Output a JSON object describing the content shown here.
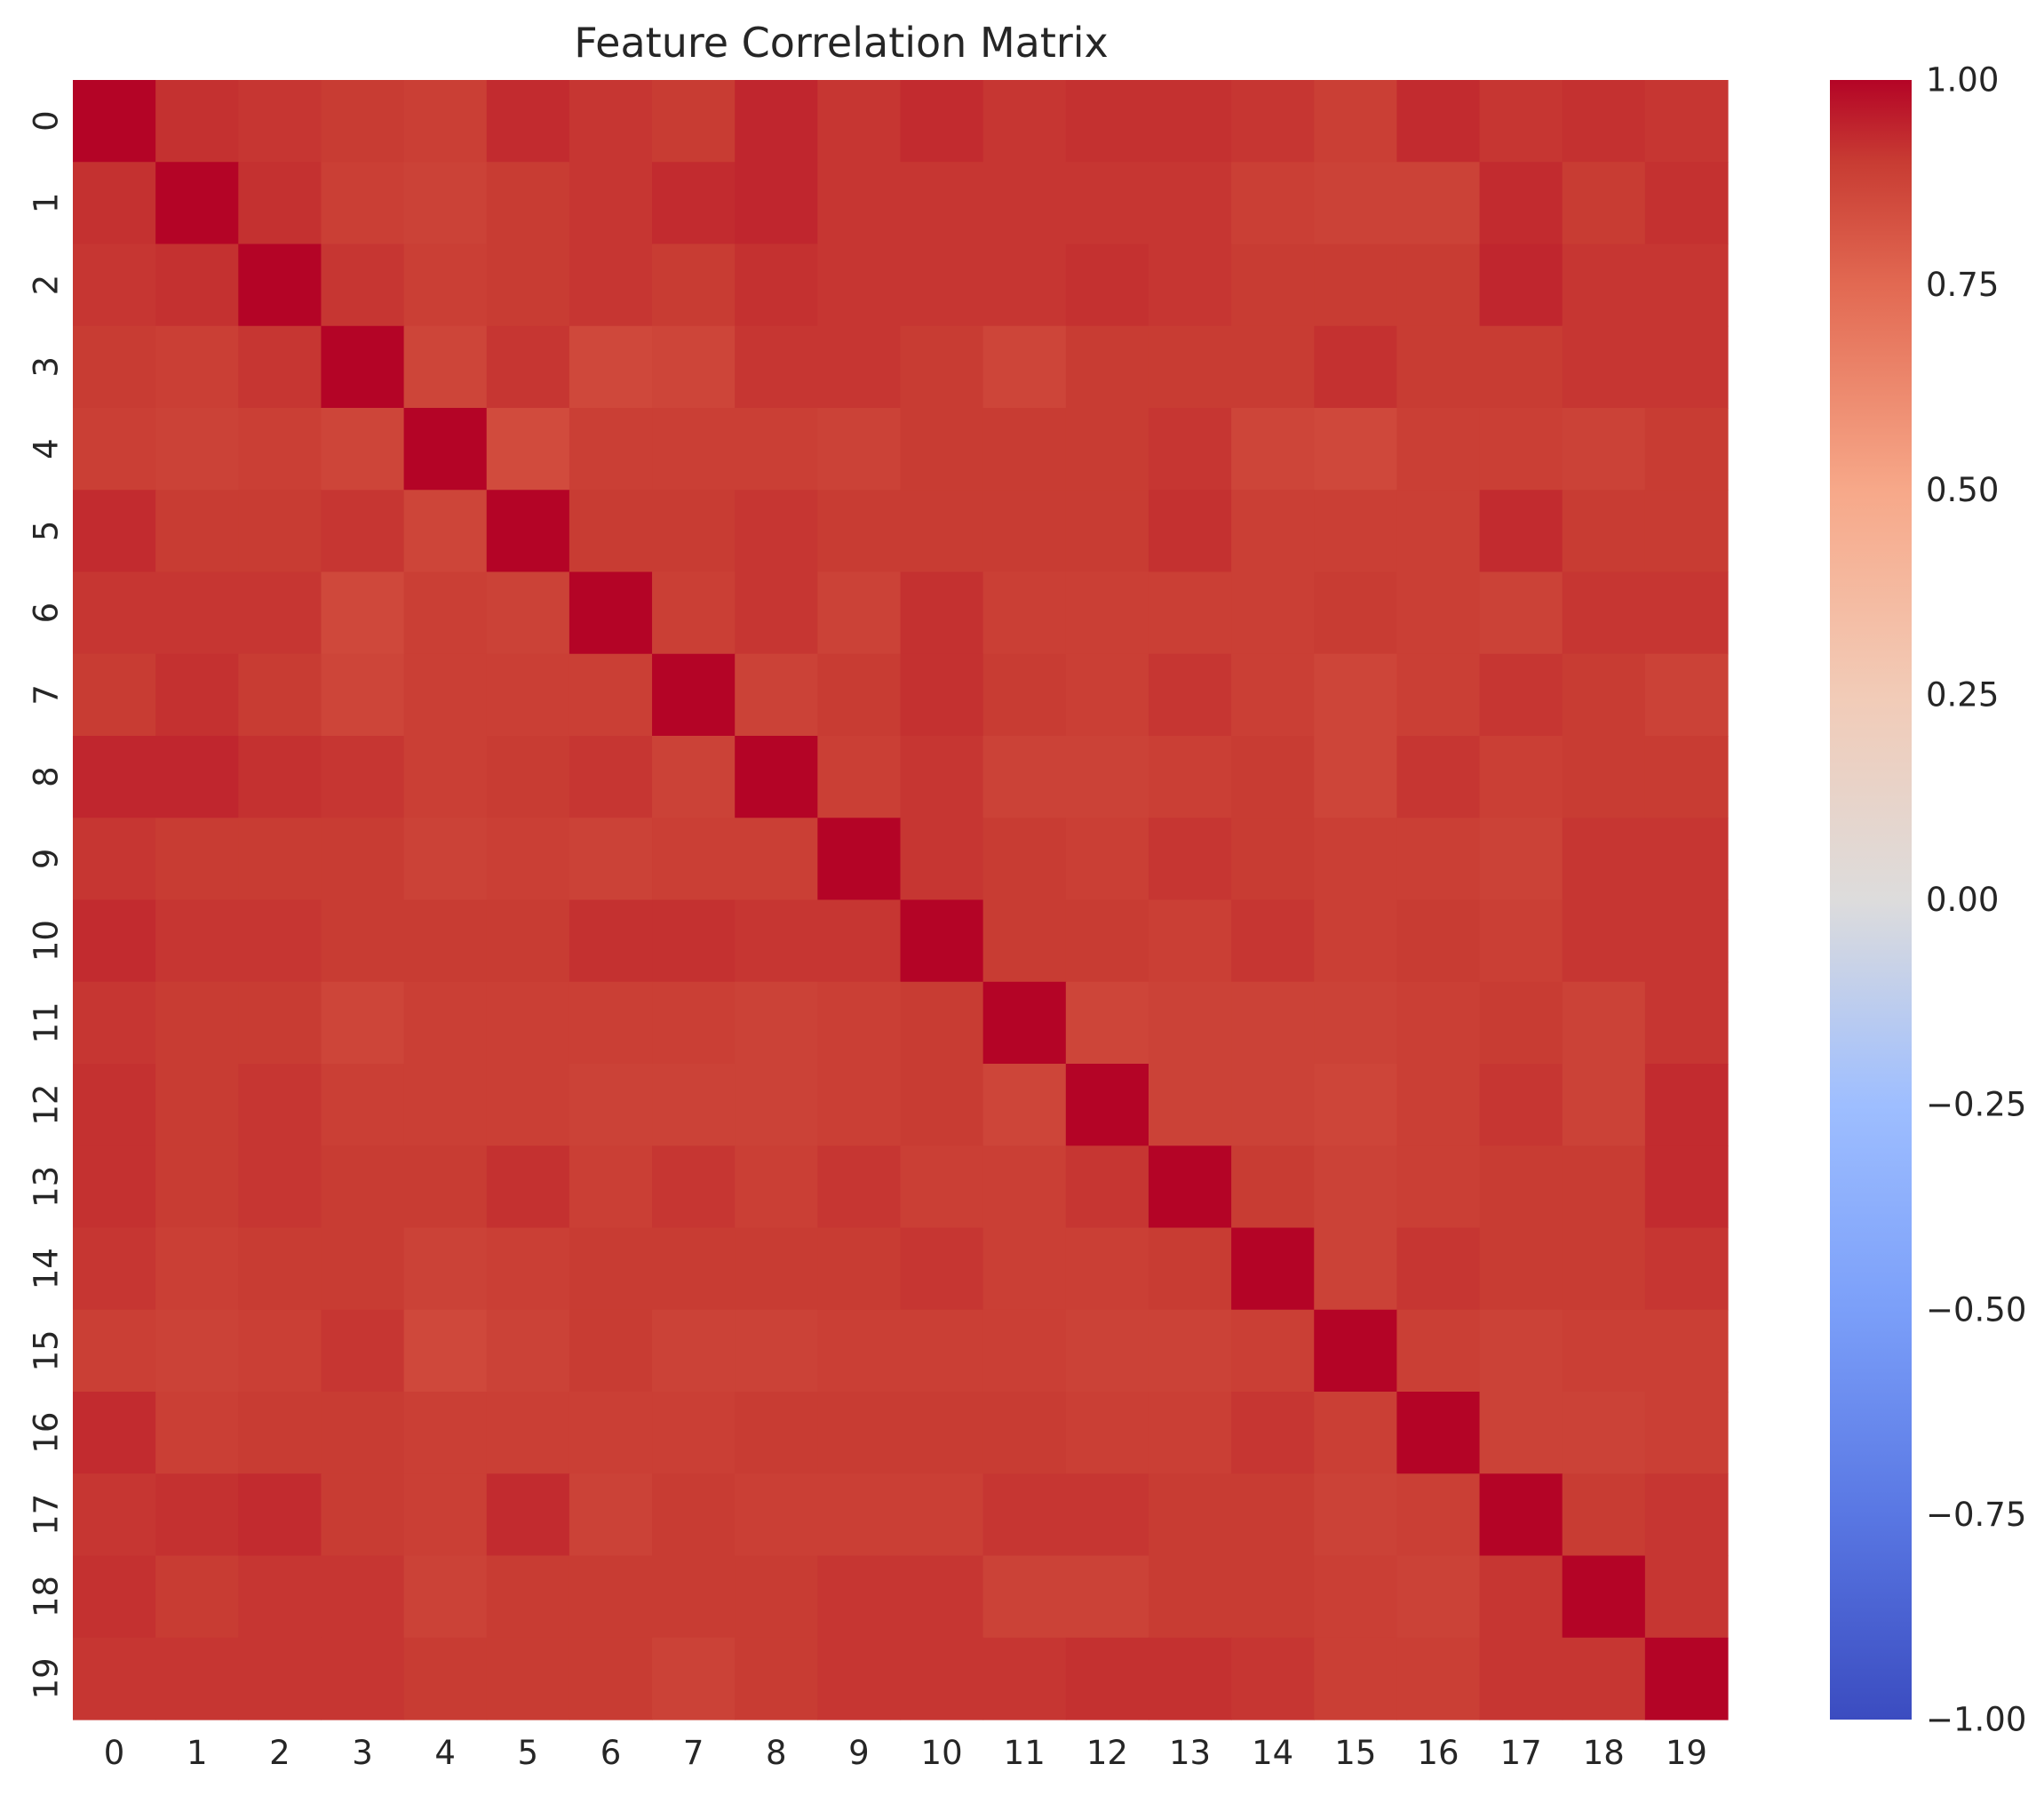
{
  "chart_data": {
    "type": "heatmap",
    "title": "Feature Correlation Matrix",
    "xlabel": "",
    "ylabel": "",
    "colormap": "coolwarm",
    "vmin": -1.0,
    "vmax": 1.0,
    "grid": false,
    "legend": "colorbar-right",
    "x_ticks": [
      "0",
      "1",
      "2",
      "3",
      "4",
      "5",
      "6",
      "7",
      "8",
      "9",
      "10",
      "11",
      "12",
      "13",
      "14",
      "15",
      "16",
      "17",
      "18",
      "19"
    ],
    "y_ticks": [
      "0",
      "1",
      "2",
      "3",
      "4",
      "5",
      "6",
      "7",
      "8",
      "9",
      "10",
      "11",
      "12",
      "13",
      "14",
      "15",
      "16",
      "17",
      "18",
      "19"
    ],
    "colorbar_ticks": [
      "1.00",
      "0.75",
      "0.50",
      "0.25",
      "0.00",
      "−0.25",
      "−0.50",
      "−0.75",
      "−1.00"
    ],
    "colorbar_tick_values": [
      1.0,
      0.75,
      0.5,
      0.25,
      0.0,
      -0.25,
      -0.5,
      -0.75,
      -1.0
    ],
    "colorbar_stops": [
      {
        "v": -1.0,
        "c": "#3b4cc0"
      },
      {
        "v": -0.75,
        "c": "#5977e3"
      },
      {
        "v": -0.5,
        "c": "#7b9ff9"
      },
      {
        "v": -0.25,
        "c": "#9ebeff"
      },
      {
        "v": 0.0,
        "c": "#dddcdc"
      },
      {
        "v": 0.25,
        "c": "#f2cbb7"
      },
      {
        "v": 0.5,
        "c": "#f7a889"
      },
      {
        "v": 0.75,
        "c": "#e26952"
      },
      {
        "v": 0.9,
        "c": "#c83c33"
      },
      {
        "v": 1.0,
        "c": "#b40426"
      }
    ],
    "values": [
      [
        1.0,
        0.92,
        0.91,
        0.9,
        0.89,
        0.93,
        0.91,
        0.9,
        0.94,
        0.91,
        0.93,
        0.91,
        0.92,
        0.92,
        0.91,
        0.89,
        0.93,
        0.91,
        0.92,
        0.91
      ],
      [
        0.92,
        1.0,
        0.92,
        0.89,
        0.88,
        0.9,
        0.91,
        0.93,
        0.94,
        0.91,
        0.91,
        0.91,
        0.91,
        0.91,
        0.89,
        0.88,
        0.88,
        0.93,
        0.9,
        0.92
      ],
      [
        0.91,
        0.92,
        1.0,
        0.91,
        0.89,
        0.9,
        0.91,
        0.9,
        0.92,
        0.91,
        0.91,
        0.91,
        0.92,
        0.91,
        0.9,
        0.9,
        0.9,
        0.94,
        0.91,
        0.91
      ],
      [
        0.9,
        0.89,
        0.91,
        1.0,
        0.87,
        0.91,
        0.86,
        0.87,
        0.91,
        0.91,
        0.9,
        0.87,
        0.9,
        0.9,
        0.9,
        0.92,
        0.9,
        0.9,
        0.91,
        0.91
      ],
      [
        0.89,
        0.88,
        0.89,
        0.87,
        1.0,
        0.85,
        0.89,
        0.89,
        0.89,
        0.88,
        0.9,
        0.9,
        0.9,
        0.91,
        0.87,
        0.86,
        0.89,
        0.89,
        0.88,
        0.9
      ],
      [
        0.93,
        0.9,
        0.9,
        0.91,
        0.87,
        1.0,
        0.9,
        0.9,
        0.91,
        0.9,
        0.9,
        0.9,
        0.9,
        0.92,
        0.89,
        0.89,
        0.89,
        0.93,
        0.9,
        0.9
      ],
      [
        0.91,
        0.91,
        0.91,
        0.86,
        0.89,
        0.88,
        1.0,
        0.89,
        0.91,
        0.88,
        0.92,
        0.89,
        0.89,
        0.89,
        0.89,
        0.9,
        0.89,
        0.88,
        0.91,
        0.91
      ],
      [
        0.9,
        0.92,
        0.9,
        0.87,
        0.89,
        0.89,
        0.89,
        1.0,
        0.88,
        0.9,
        0.92,
        0.9,
        0.89,
        0.91,
        0.89,
        0.87,
        0.89,
        0.91,
        0.9,
        0.88
      ],
      [
        0.94,
        0.94,
        0.92,
        0.91,
        0.89,
        0.9,
        0.91,
        0.88,
        1.0,
        0.89,
        0.91,
        0.88,
        0.88,
        0.89,
        0.9,
        0.87,
        0.91,
        0.89,
        0.9,
        0.9
      ],
      [
        0.91,
        0.9,
        0.9,
        0.9,
        0.88,
        0.89,
        0.88,
        0.89,
        0.89,
        1.0,
        0.91,
        0.9,
        0.89,
        0.91,
        0.9,
        0.89,
        0.89,
        0.88,
        0.91,
        0.91
      ],
      [
        0.93,
        0.91,
        0.91,
        0.9,
        0.9,
        0.9,
        0.92,
        0.92,
        0.91,
        0.91,
        1.0,
        0.9,
        0.9,
        0.89,
        0.91,
        0.89,
        0.9,
        0.89,
        0.91,
        0.91
      ],
      [
        0.91,
        0.9,
        0.9,
        0.87,
        0.89,
        0.89,
        0.89,
        0.89,
        0.88,
        0.89,
        0.9,
        1.0,
        0.87,
        0.88,
        0.88,
        0.88,
        0.89,
        0.9,
        0.88,
        0.91
      ],
      [
        0.92,
        0.9,
        0.91,
        0.89,
        0.89,
        0.89,
        0.88,
        0.88,
        0.88,
        0.89,
        0.9,
        0.87,
        1.0,
        0.88,
        0.88,
        0.87,
        0.89,
        0.91,
        0.88,
        0.93
      ],
      [
        0.92,
        0.9,
        0.91,
        0.9,
        0.9,
        0.92,
        0.89,
        0.91,
        0.89,
        0.91,
        0.89,
        0.89,
        0.91,
        1.0,
        0.9,
        0.88,
        0.89,
        0.9,
        0.9,
        0.93
      ],
      [
        0.91,
        0.89,
        0.9,
        0.9,
        0.88,
        0.89,
        0.9,
        0.9,
        0.9,
        0.9,
        0.91,
        0.89,
        0.89,
        0.9,
        1.0,
        0.88,
        0.91,
        0.9,
        0.9,
        0.91
      ],
      [
        0.89,
        0.88,
        0.89,
        0.91,
        0.86,
        0.88,
        0.9,
        0.88,
        0.88,
        0.89,
        0.89,
        0.89,
        0.88,
        0.88,
        0.89,
        1.0,
        0.89,
        0.88,
        0.89,
        0.89
      ],
      [
        0.93,
        0.89,
        0.9,
        0.9,
        0.89,
        0.89,
        0.89,
        0.89,
        0.9,
        0.9,
        0.9,
        0.9,
        0.89,
        0.89,
        0.91,
        0.89,
        1.0,
        0.88,
        0.88,
        0.89
      ],
      [
        0.91,
        0.92,
        0.93,
        0.9,
        0.89,
        0.93,
        0.88,
        0.9,
        0.89,
        0.89,
        0.89,
        0.91,
        0.91,
        0.9,
        0.9,
        0.88,
        0.89,
        1.0,
        0.9,
        0.91
      ],
      [
        0.92,
        0.9,
        0.91,
        0.91,
        0.88,
        0.9,
        0.9,
        0.9,
        0.9,
        0.91,
        0.91,
        0.88,
        0.88,
        0.9,
        0.9,
        0.89,
        0.88,
        0.91,
        1.0,
        0.91
      ],
      [
        0.91,
        0.91,
        0.91,
        0.91,
        0.9,
        0.9,
        0.9,
        0.88,
        0.9,
        0.91,
        0.91,
        0.91,
        0.92,
        0.92,
        0.91,
        0.89,
        0.89,
        0.91,
        0.91,
        1.0
      ]
    ]
  }
}
